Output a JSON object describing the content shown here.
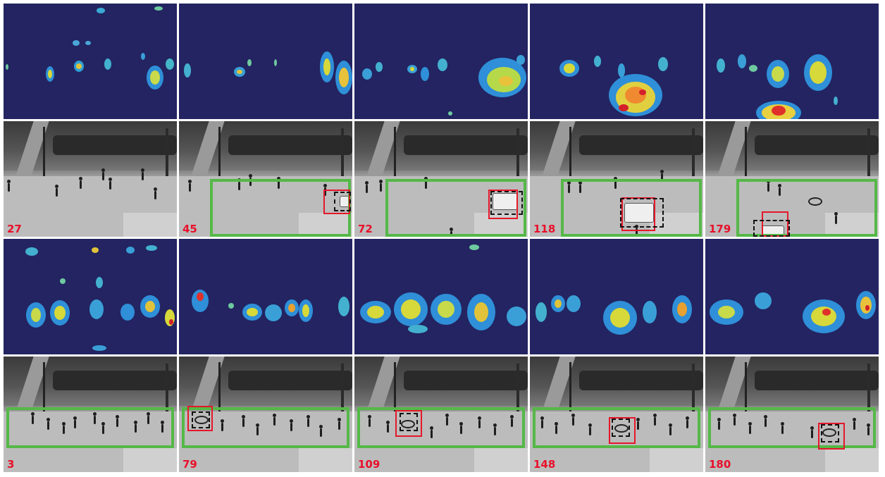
{
  "frames_top": [
    {
      "label": "27"
    },
    {
      "label": "45"
    },
    {
      "label": "72"
    },
    {
      "label": "118"
    },
    {
      "label": "179"
    }
  ],
  "frames_bottom": [
    {
      "label": "3"
    },
    {
      "label": "79"
    },
    {
      "label": "109"
    },
    {
      "label": "148"
    },
    {
      "label": "180"
    }
  ],
  "colors": {
    "heat_bg": "#232461",
    "green_box": "#55b848",
    "red_box": "#e5172a",
    "frame_number": "#e8102a"
  }
}
